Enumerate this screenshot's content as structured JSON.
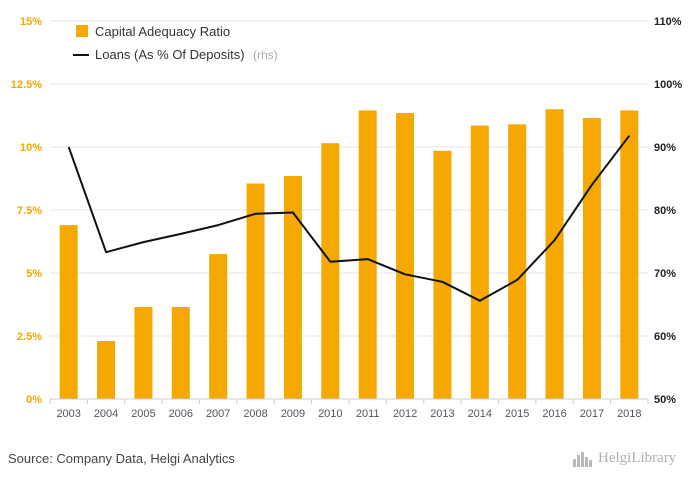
{
  "chart_data": {
    "type": "bar+line",
    "categories": [
      "2003",
      "2004",
      "2005",
      "2006",
      "2007",
      "2008",
      "2009",
      "2010",
      "2011",
      "2012",
      "2013",
      "2014",
      "2015",
      "2016",
      "2017",
      "2018"
    ],
    "series": [
      {
        "name": "Capital Adequacy Ratio",
        "type": "bar",
        "axis": "left",
        "color": "#f5a800",
        "values": [
          6.9,
          2.3,
          3.65,
          3.65,
          5.75,
          8.55,
          8.85,
          10.15,
          11.45,
          11.35,
          9.85,
          10.85,
          10.9,
          11.5,
          11.15,
          11.45
        ]
      },
      {
        "name": "Loans (As % Of Deposits)",
        "note": "(rhs)",
        "type": "line",
        "axis": "right",
        "color": "#111111",
        "values": [
          90.0,
          73.3,
          74.9,
          76.2,
          77.6,
          79.4,
          79.6,
          71.8,
          72.2,
          69.8,
          68.6,
          65.6,
          68.9,
          75.2,
          84.0,
          91.8
        ]
      }
    ],
    "y_left": {
      "ylim": [
        0,
        15
      ],
      "ticks": [
        0,
        2.5,
        5,
        7.5,
        10,
        12.5,
        15
      ],
      "tick_labels": [
        "0%",
        "2.5%",
        "5%",
        "7.5%",
        "10%",
        "12.5%",
        "15%"
      ]
    },
    "y_right": {
      "ylim": [
        50,
        110
      ],
      "ticks": [
        50,
        60,
        70,
        80,
        90,
        100,
        110
      ],
      "tick_labels": [
        "50%",
        "60%",
        "70%",
        "80%",
        "90%",
        "100%",
        "110%"
      ]
    },
    "grid": true,
    "legend_position": "top-left"
  },
  "source_text": "Source: Company Data, Helgi Analytics",
  "brand": {
    "name": "HelgiLibrary",
    "icon": "helgi-skyline-icon"
  }
}
